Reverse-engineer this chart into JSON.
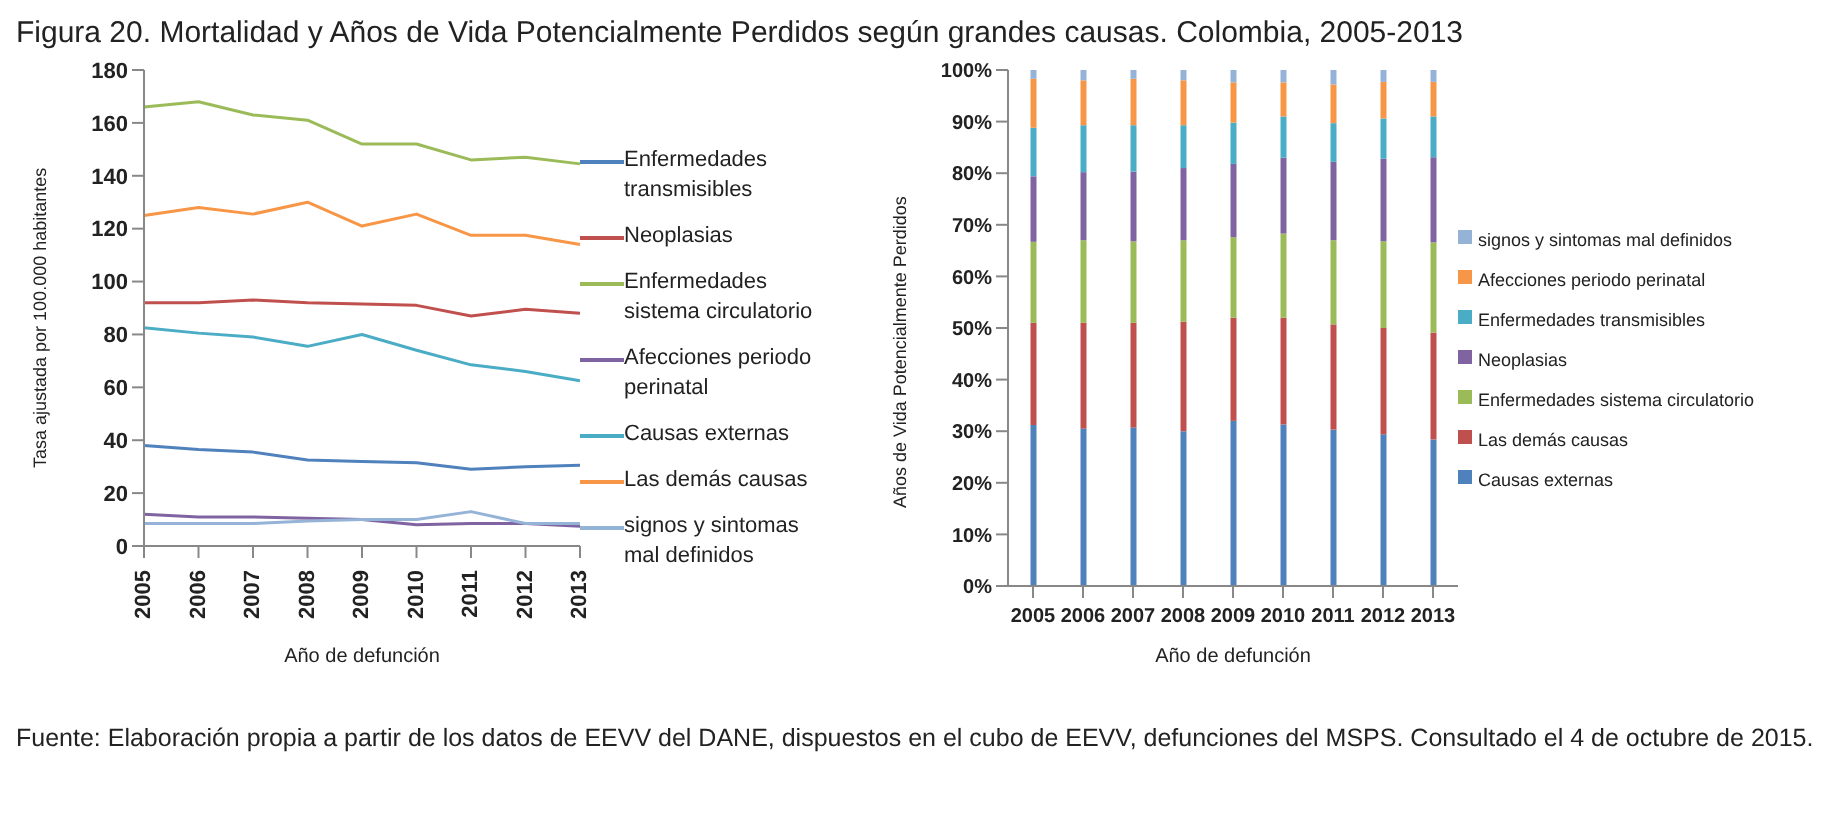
{
  "chart_data": [
    {
      "type": "line",
      "title": "Figura 20. Mortalidad y Años de Vida Potencialmente Perdidos según grandes causas. Colombia, 2005-2013",
      "xlabel": "Año de defunción",
      "ylabel": "Tasa ajustada por 100.000 habitantes",
      "categories": [
        "2005",
        "2006",
        "2007",
        "2008",
        "2009",
        "2010",
        "2011",
        "2012",
        "2013"
      ],
      "ylim": [
        0,
        180
      ],
      "yticks": [
        0,
        20,
        40,
        60,
        80,
        100,
        120,
        140,
        160,
        180
      ],
      "grid": false,
      "legend": "right",
      "marker": "none",
      "series": [
        {
          "name": "Enfermedades transmisibles",
          "color": "#4f81bd",
          "values": [
            38,
            36.5,
            35.5,
            32.5,
            32,
            31.5,
            29,
            30,
            30.5
          ]
        },
        {
          "name": "Neoplasias",
          "color": "#c0504d",
          "values": [
            92,
            92,
            93,
            92,
            91.5,
            91,
            87,
            89.5,
            88
          ]
        },
        {
          "name": "Enfermedades sistema circulatorio",
          "color": "#9bbb59",
          "values": [
            166,
            168,
            163,
            161,
            152,
            152,
            146,
            147,
            144.5
          ]
        },
        {
          "name": "Afecciones periodo perinatal",
          "color": "#8064a2",
          "values": [
            12,
            11,
            11,
            10.5,
            10,
            8,
            8.5,
            8.5,
            7.5
          ]
        },
        {
          "name": "Causas externas",
          "color": "#4bacc6",
          "values": [
            82.5,
            80.5,
            79,
            75.5,
            80,
            74,
            68.5,
            66,
            62.5
          ]
        },
        {
          "name": "Las demás causas",
          "color": "#f79646",
          "values": [
            125,
            128,
            125.5,
            130,
            121,
            125.5,
            117.5,
            117.5,
            114
          ]
        },
        {
          "name": "signos y sintomas mal definidos",
          "color": "#95b3d7",
          "values": [
            8.5,
            8.5,
            8.5,
            9.5,
            10,
            10,
            13,
            8.5,
            8.5
          ]
        }
      ],
      "annotations": [
        "Fuente: Elaboración propia a partir de los datos de EEVV del DANE, dispuestos en el cubo de EEVV, defunciones del MSPS. Consultado el 4 de octubre de 2015."
      ]
    },
    {
      "type": "bar",
      "stacked": true,
      "xlabel": "Año de defunción",
      "ylabel": "Años de Vida Potencialmente Perdidos",
      "categories": [
        "2005",
        "2006",
        "2007",
        "2008",
        "2009",
        "2010",
        "2011",
        "2012",
        "2013"
      ],
      "ylim": [
        0,
        100
      ],
      "yticks": [
        {
          "value": 0,
          "label": "0%"
        },
        {
          "value": 10,
          "label": "10%"
        },
        {
          "value": 20,
          "label": "20%"
        },
        {
          "value": 30,
          "label": "30%"
        },
        {
          "value": 40,
          "label": "40%"
        },
        {
          "value": 50,
          "label": "50%"
        },
        {
          "value": 60,
          "label": "60%"
        },
        {
          "value": 70,
          "label": "70%"
        },
        {
          "value": 80,
          "label": "80%"
        },
        {
          "value": 90,
          "label": "90%"
        },
        {
          "value": 100,
          "label": "100%"
        }
      ],
      "grid": false,
      "legend": "right",
      "series": [
        {
          "name": "Causas externas",
          "color": "#4f81bd",
          "values": [
            31.2,
            30.5,
            30.7,
            30,
            32,
            31.3,
            30.3,
            29.4,
            28.4
          ]
        },
        {
          "name": "Las demás causas",
          "color": "#c0504d",
          "values": [
            19.8,
            20.5,
            20.3,
            21.2,
            20,
            20.7,
            20.4,
            20.6,
            20.7
          ]
        },
        {
          "name": "Enfermedades sistema circulatorio",
          "color": "#9bbb59",
          "values": [
            15.7,
            16,
            15.8,
            15.8,
            15.6,
            16.3,
            16.3,
            16.8,
            17.5
          ]
        },
        {
          "name": "Neoplasias",
          "color": "#8064a2",
          "values": [
            12.7,
            13.2,
            13.5,
            14,
            14.2,
            14.7,
            15.2,
            16,
            16.5
          ]
        },
        {
          "name": "Enfermedades transmisibles",
          "color": "#4bacc6",
          "values": [
            9.4,
            9.1,
            9,
            8.3,
            8,
            8,
            7.5,
            7.8,
            7.9
          ]
        },
        {
          "name": "Afecciones periodo perinatal",
          "color": "#f79646",
          "values": [
            9.5,
            8.7,
            9,
            8.7,
            7.8,
            6.6,
            7.5,
            7.1,
            6.7
          ]
        },
        {
          "name": "signos y sintomas mal definidos",
          "color": "#95b3d7",
          "values": [
            1.7,
            2,
            1.7,
            2,
            2.4,
            2.4,
            2.8,
            2.3,
            2.3
          ]
        }
      ]
    }
  ]
}
